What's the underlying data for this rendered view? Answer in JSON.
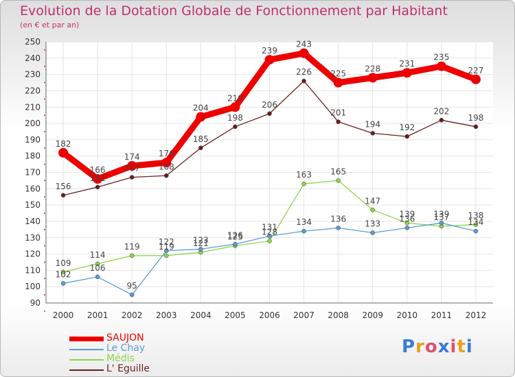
{
  "title": "Evolution de la Dotation Globale de Fonctionnement par Habitant",
  "subtitle": "(en € et par an)",
  "logo_text": "Proxiti",
  "colors": {
    "title": "#c0306a",
    "grid": "#e4e4e4",
    "axis": "#666666"
  },
  "chart_data": {
    "type": "line",
    "title": "Evolution de la Dotation Globale de Fonctionnement par Habitant",
    "subtitle": "(en € et par an)",
    "xlabel": "",
    "ylabel": "",
    "x": [
      "2000",
      "2001",
      "2002",
      "2003",
      "2004",
      "2005",
      "2006",
      "2007",
      "2008",
      "2009",
      "2010",
      "2011",
      "2012"
    ],
    "ylim": [
      90,
      250
    ],
    "yticks": [
      90,
      100,
      110,
      120,
      130,
      140,
      150,
      160,
      170,
      180,
      190,
      200,
      210,
      220,
      230,
      240,
      250
    ],
    "grid": true,
    "legend_position": "bottom-left",
    "series": [
      {
        "name": "SAUJON",
        "color": "#ee0000",
        "values": [
          182,
          166,
          174,
          176,
          204,
          210,
          239,
          243,
          225,
          228,
          231,
          235,
          227
        ]
      },
      {
        "name": "Le Chay",
        "color": "#5b9bd5",
        "values": [
          102,
          106,
          95,
          122,
          123,
          126,
          131,
          134,
          136,
          133,
          136,
          139,
          134
        ]
      },
      {
        "name": "Médis",
        "color": "#8fd44a",
        "values": [
          109,
          114,
          119,
          119,
          121,
          125,
          128,
          163,
          165,
          147,
          139,
          137,
          138
        ]
      },
      {
        "name": "L' Eguille",
        "color": "#6b1e1e",
        "values": [
          156,
          161,
          167,
          168,
          185,
          198,
          206,
          226,
          201,
          194,
          192,
          202,
          198
        ]
      }
    ]
  }
}
